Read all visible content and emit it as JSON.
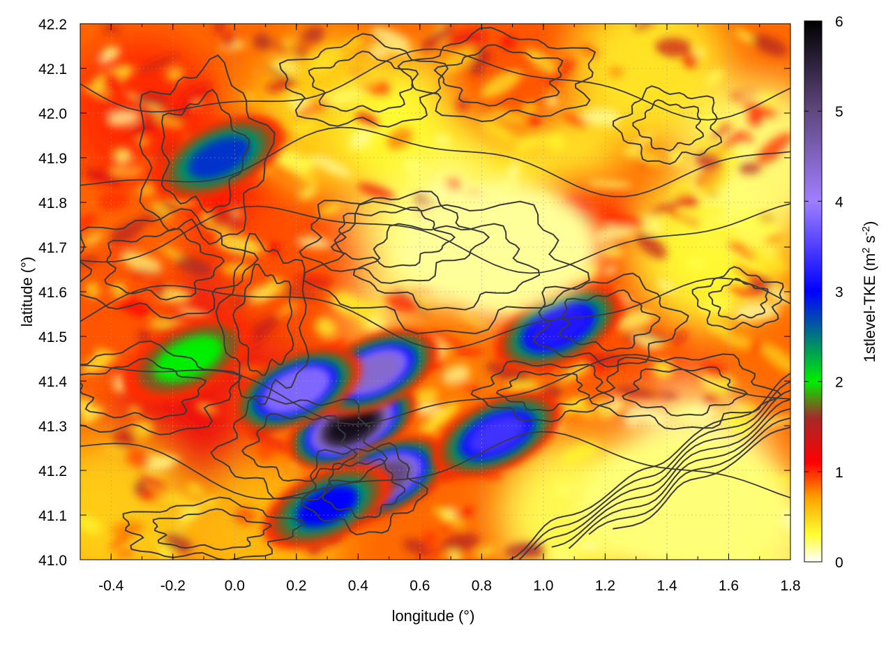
{
  "chart_data": {
    "type": "heatmap",
    "title": "",
    "xlabel": "longitude (°)",
    "ylabel": "latitude (°)",
    "xlim": [
      -0.5,
      1.8
    ],
    "ylim": [
      41.0,
      42.2
    ],
    "x_ticks": [
      -0.4,
      -0.2,
      0.0,
      0.2,
      0.4,
      0.6,
      0.8,
      1.0,
      1.2,
      1.4,
      1.6,
      1.8
    ],
    "y_ticks": [
      41.0,
      41.1,
      41.2,
      41.3,
      41.4,
      41.5,
      41.6,
      41.7,
      41.8,
      41.9,
      42.0,
      42.1,
      42.2
    ],
    "x_tick_labels": [
      "-0.4",
      "-0.2",
      "0.0",
      "0.2",
      "0.4",
      "0.6",
      "0.8",
      "1.0",
      "1.2",
      "1.4",
      "1.6",
      "1.8"
    ],
    "y_tick_labels": [
      "41.0",
      "41.1",
      "41.2",
      "41.3",
      "41.4",
      "41.5",
      "41.6",
      "41.7",
      "41.8",
      "41.9",
      "42.0",
      "42.1",
      "42.2"
    ],
    "grid": true,
    "colorbar": {
      "label_main": "1stlevel-TKE (m",
      "label_sup1": "2",
      "label_mid": " s",
      "label_sup2": "-2",
      "label_end": ")",
      "range": [
        0,
        6
      ],
      "ticks": [
        0,
        1,
        2,
        3,
        4,
        5,
        6
      ],
      "tick_labels": [
        "0",
        "1",
        "2",
        "3",
        "4",
        "5",
        "6"
      ],
      "stops": [
        {
          "value": 0.0,
          "color": "#ffffff"
        },
        {
          "value": 0.3,
          "color": "#ffff33"
        },
        {
          "value": 0.7,
          "color": "#ffa500"
        },
        {
          "value": 1.1,
          "color": "#ff0000"
        },
        {
          "value": 1.6,
          "color": "#a52a2a"
        },
        {
          "value": 2.0,
          "color": "#00ee00"
        },
        {
          "value": 3.0,
          "color": "#0000ff"
        },
        {
          "value": 4.0,
          "color": "#9f7fff"
        },
        {
          "value": 5.0,
          "color": "#604880"
        },
        {
          "value": 6.0,
          "color": "#000000"
        }
      ]
    },
    "field_features": [
      {
        "feature": "high-TKE core",
        "lon": 0.38,
        "lat": 41.3,
        "value": 5.8
      },
      {
        "feature": "high-TKE band",
        "lon": 0.45,
        "lat": 41.42,
        "value": 4.4
      },
      {
        "feature": "high-TKE band",
        "lon": 0.2,
        "lat": 41.38,
        "value": 3.8
      },
      {
        "feature": "high-TKE core",
        "lon": 0.48,
        "lat": 41.18,
        "value": 5.0
      },
      {
        "feature": "high-TKE band",
        "lon": 0.3,
        "lat": 41.12,
        "value": 3.0
      },
      {
        "feature": "high-TKE band",
        "lon": 1.05,
        "lat": 41.52,
        "value": 3.2
      },
      {
        "feature": "high-TKE band",
        "lon": 0.85,
        "lat": 41.28,
        "value": 3.4
      },
      {
        "feature": "moderate-TKE band",
        "lon": -0.15,
        "lat": 41.45,
        "value": 2.0
      },
      {
        "feature": "moderate-TKE band",
        "lon": -0.05,
        "lat": 41.9,
        "value": 2.8
      },
      {
        "feature": "low-TKE plateau",
        "lon": 0.85,
        "lat": 41.7,
        "value": 0.15
      },
      {
        "feature": "low-TKE plateau",
        "lon": 1.45,
        "lat": 41.12,
        "value": 0.2
      }
    ],
    "contours": "terrain elevation isolines (dark grey)"
  },
  "colors": {
    "contour": "#3a3a3a",
    "grid": "#a0a0a0",
    "axis": "#000000"
  }
}
